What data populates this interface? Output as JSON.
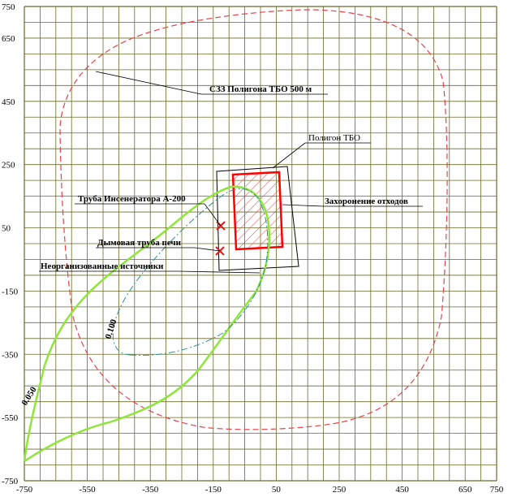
{
  "axes": {
    "x_ticks": [
      "-750",
      "-550",
      "-350",
      "-150",
      "50",
      "250",
      "450",
      "650",
      "750"
    ],
    "y_ticks": [
      "750",
      "650",
      "450",
      "250",
      "50",
      "-150",
      "-350",
      "-550",
      "-750"
    ]
  },
  "labels": {
    "szz": "СЗЗ Полигона ТБО 500 м",
    "poligon": "Полигон ТБО",
    "burial": "Захоронение отходов",
    "incinerator": "Труба Инсенератора А-200",
    "chimney": "Дымовая труба печи",
    "unorganized": "Неорганизованные источники"
  },
  "isolines": {
    "outer": "0.050",
    "inner": "0.100"
  },
  "colors": {
    "grid": "#6b6b2a",
    "background": "#ffffff",
    "szz_boundary": "#e8424c",
    "burial_zone": "#ff0000",
    "isoline_outer": "#8fe63a",
    "isoline_inner": "#2d8f8f",
    "source_marker": "#e01b1b"
  }
}
